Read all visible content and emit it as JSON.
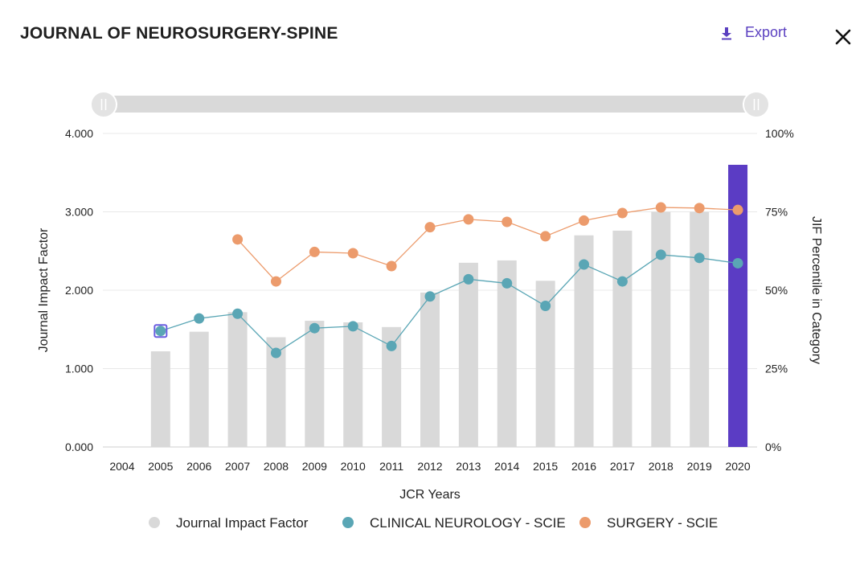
{
  "header": {
    "title": "JOURNAL OF NEUROSURGERY-SPINE",
    "export_label": "Export"
  },
  "colors": {
    "bar": "#d9d9d9",
    "bar_highlight": "#5b3cc4",
    "neuro": "#5aa6b5",
    "surgery": "#ec9b6c",
    "marker_highlight": "#6a5de0",
    "accent": "#5a3fc0"
  },
  "chart_data": {
    "type": "bar",
    "xlabel": "JCR Years",
    "ylabel": "Journal Impact Factor",
    "y2label": "JIF Percentile in Category",
    "categories": [
      "2004",
      "2005",
      "2006",
      "2007",
      "2008",
      "2009",
      "2010",
      "2011",
      "2012",
      "2013",
      "2014",
      "2015",
      "2016",
      "2017",
      "2018",
      "2019",
      "2020"
    ],
    "ylim": [
      0,
      4
    ],
    "y_ticks": [
      "0.000",
      "1.000",
      "2.000",
      "3.000",
      "4.000"
    ],
    "y2lim": [
      0,
      100
    ],
    "y2_ticks": [
      "0%",
      "25%",
      "50%",
      "75%",
      "100%"
    ],
    "series": [
      {
        "name": "Journal Impact Factor",
        "type": "bar",
        "values": [
          null,
          1.22,
          1.47,
          1.72,
          1.4,
          1.61,
          1.59,
          1.53,
          1.97,
          2.35,
          2.38,
          2.12,
          2.7,
          2.76,
          3.0,
          3.0,
          3.6
        ],
        "highlight_category": "2020"
      },
      {
        "name": "CLINICAL NEUROLOGY - SCIE",
        "type": "line",
        "axis": "y2",
        "values": [
          null,
          37,
          41,
          42.5,
          30,
          37.9,
          38.5,
          32.2,
          48,
          53.5,
          52.2,
          45,
          58.2,
          52.8,
          61.3,
          60.3,
          58.6
        ]
      },
      {
        "name": "SURGERY - SCIE",
        "type": "line",
        "axis": "y2",
        "values": [
          null,
          null,
          null,
          66.2,
          52.8,
          62.2,
          61.8,
          57.7,
          70.1,
          72.6,
          71.8,
          67.2,
          72.2,
          74.6,
          76.4,
          76.2,
          75.6
        ]
      }
    ],
    "grid": true,
    "legend_position": "bottom"
  }
}
